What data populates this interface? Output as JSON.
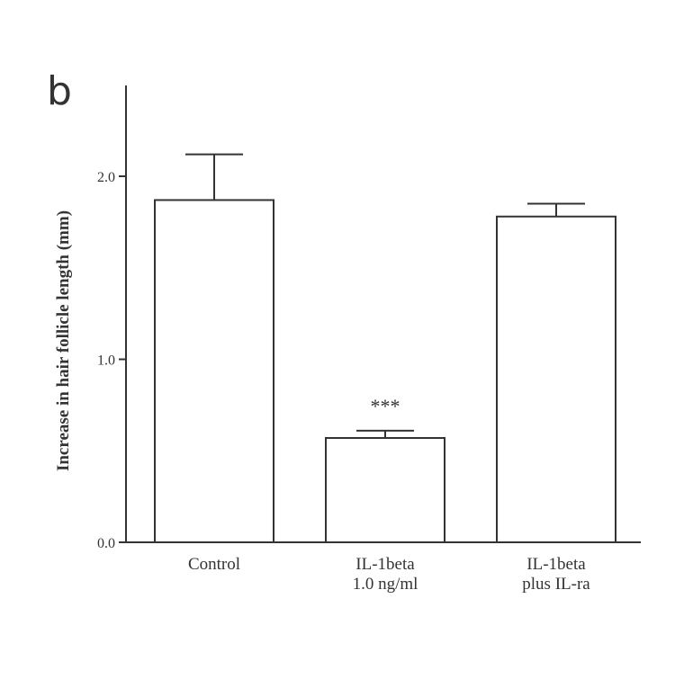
{
  "chart_data": {
    "type": "bar",
    "panel_label": "b",
    "categories": [
      [
        "Control"
      ],
      [
        "IL-1beta",
        "1.0 ng/ml"
      ],
      [
        "IL-1beta",
        "plus IL-ra"
      ]
    ],
    "values": [
      1.87,
      0.57,
      1.78
    ],
    "errors": [
      0.25,
      0.04,
      0.07
    ],
    "annotations": [
      "",
      "***",
      ""
    ],
    "ylabel": "Increase in hair follicle length (mm)",
    "xlabel": "",
    "ylim": [
      0,
      2.5
    ],
    "yticks": [
      0.0,
      1.0,
      2.0
    ],
    "ytick_labels": [
      "0.0",
      "1.0",
      "2.0"
    ],
    "grid": false,
    "legend": false
  },
  "colors": {
    "ink": "#333333",
    "bar_fill": "#ffffff"
  }
}
